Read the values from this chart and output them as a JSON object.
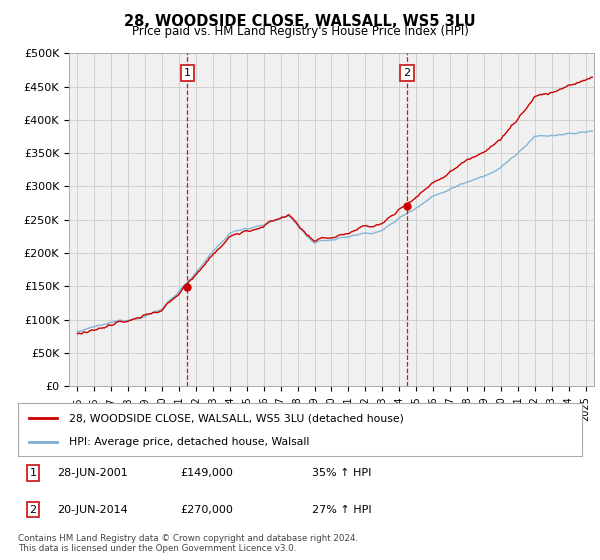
{
  "title": "28, WOODSIDE CLOSE, WALSALL, WS5 3LU",
  "subtitle": "Price paid vs. HM Land Registry's House Price Index (HPI)",
  "ylabel_ticks": [
    "£0",
    "£50K",
    "£100K",
    "£150K",
    "£200K",
    "£250K",
    "£300K",
    "£350K",
    "£400K",
    "£450K",
    "£500K"
  ],
  "ytick_values": [
    0,
    50000,
    100000,
    150000,
    200000,
    250000,
    300000,
    350000,
    400000,
    450000,
    500000
  ],
  "ylim": [
    0,
    500000
  ],
  "xlim_start": 1994.5,
  "xlim_end": 2025.5,
  "legend_line1": "28, WOODSIDE CLOSE, WALSALL, WS5 3LU (detached house)",
  "legend_line2": "HPI: Average price, detached house, Walsall",
  "line1_color": "#cc0000",
  "line2_color": "#7bafd4",
  "marker1_x": 2001.49,
  "marker1_y": 149000,
  "marker2_x": 2014.46,
  "marker2_y": 270000,
  "footer": "Contains HM Land Registry data © Crown copyright and database right 2024.\nThis data is licensed under the Open Government Licence v3.0.",
  "grid_color": "#cccccc",
  "background_color": "#ffffff",
  "plot_bg_color": "#f0f0f0"
}
